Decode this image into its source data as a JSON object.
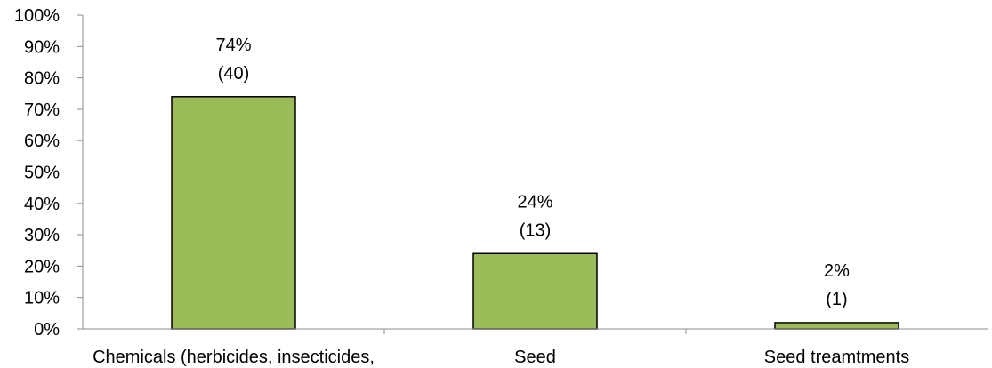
{
  "chart_data": {
    "type": "bar",
    "categories": [
      "Chemicals (herbicides, insecticides,",
      "Seed",
      "Seed treamtments"
    ],
    "values": [
      74,
      24,
      2
    ],
    "counts": [
      "(40)",
      "(13)",
      "(1)"
    ],
    "value_labels": [
      "74%",
      "24%",
      "2%"
    ],
    "ylim": [
      0,
      100
    ],
    "yticks": [
      "0%",
      "10%",
      "20%",
      "30%",
      "40%",
      "50%",
      "60%",
      "70%",
      "80%",
      "90%",
      "100%"
    ],
    "bar_color": "#9bbb59",
    "grid": false,
    "legend": "none"
  }
}
